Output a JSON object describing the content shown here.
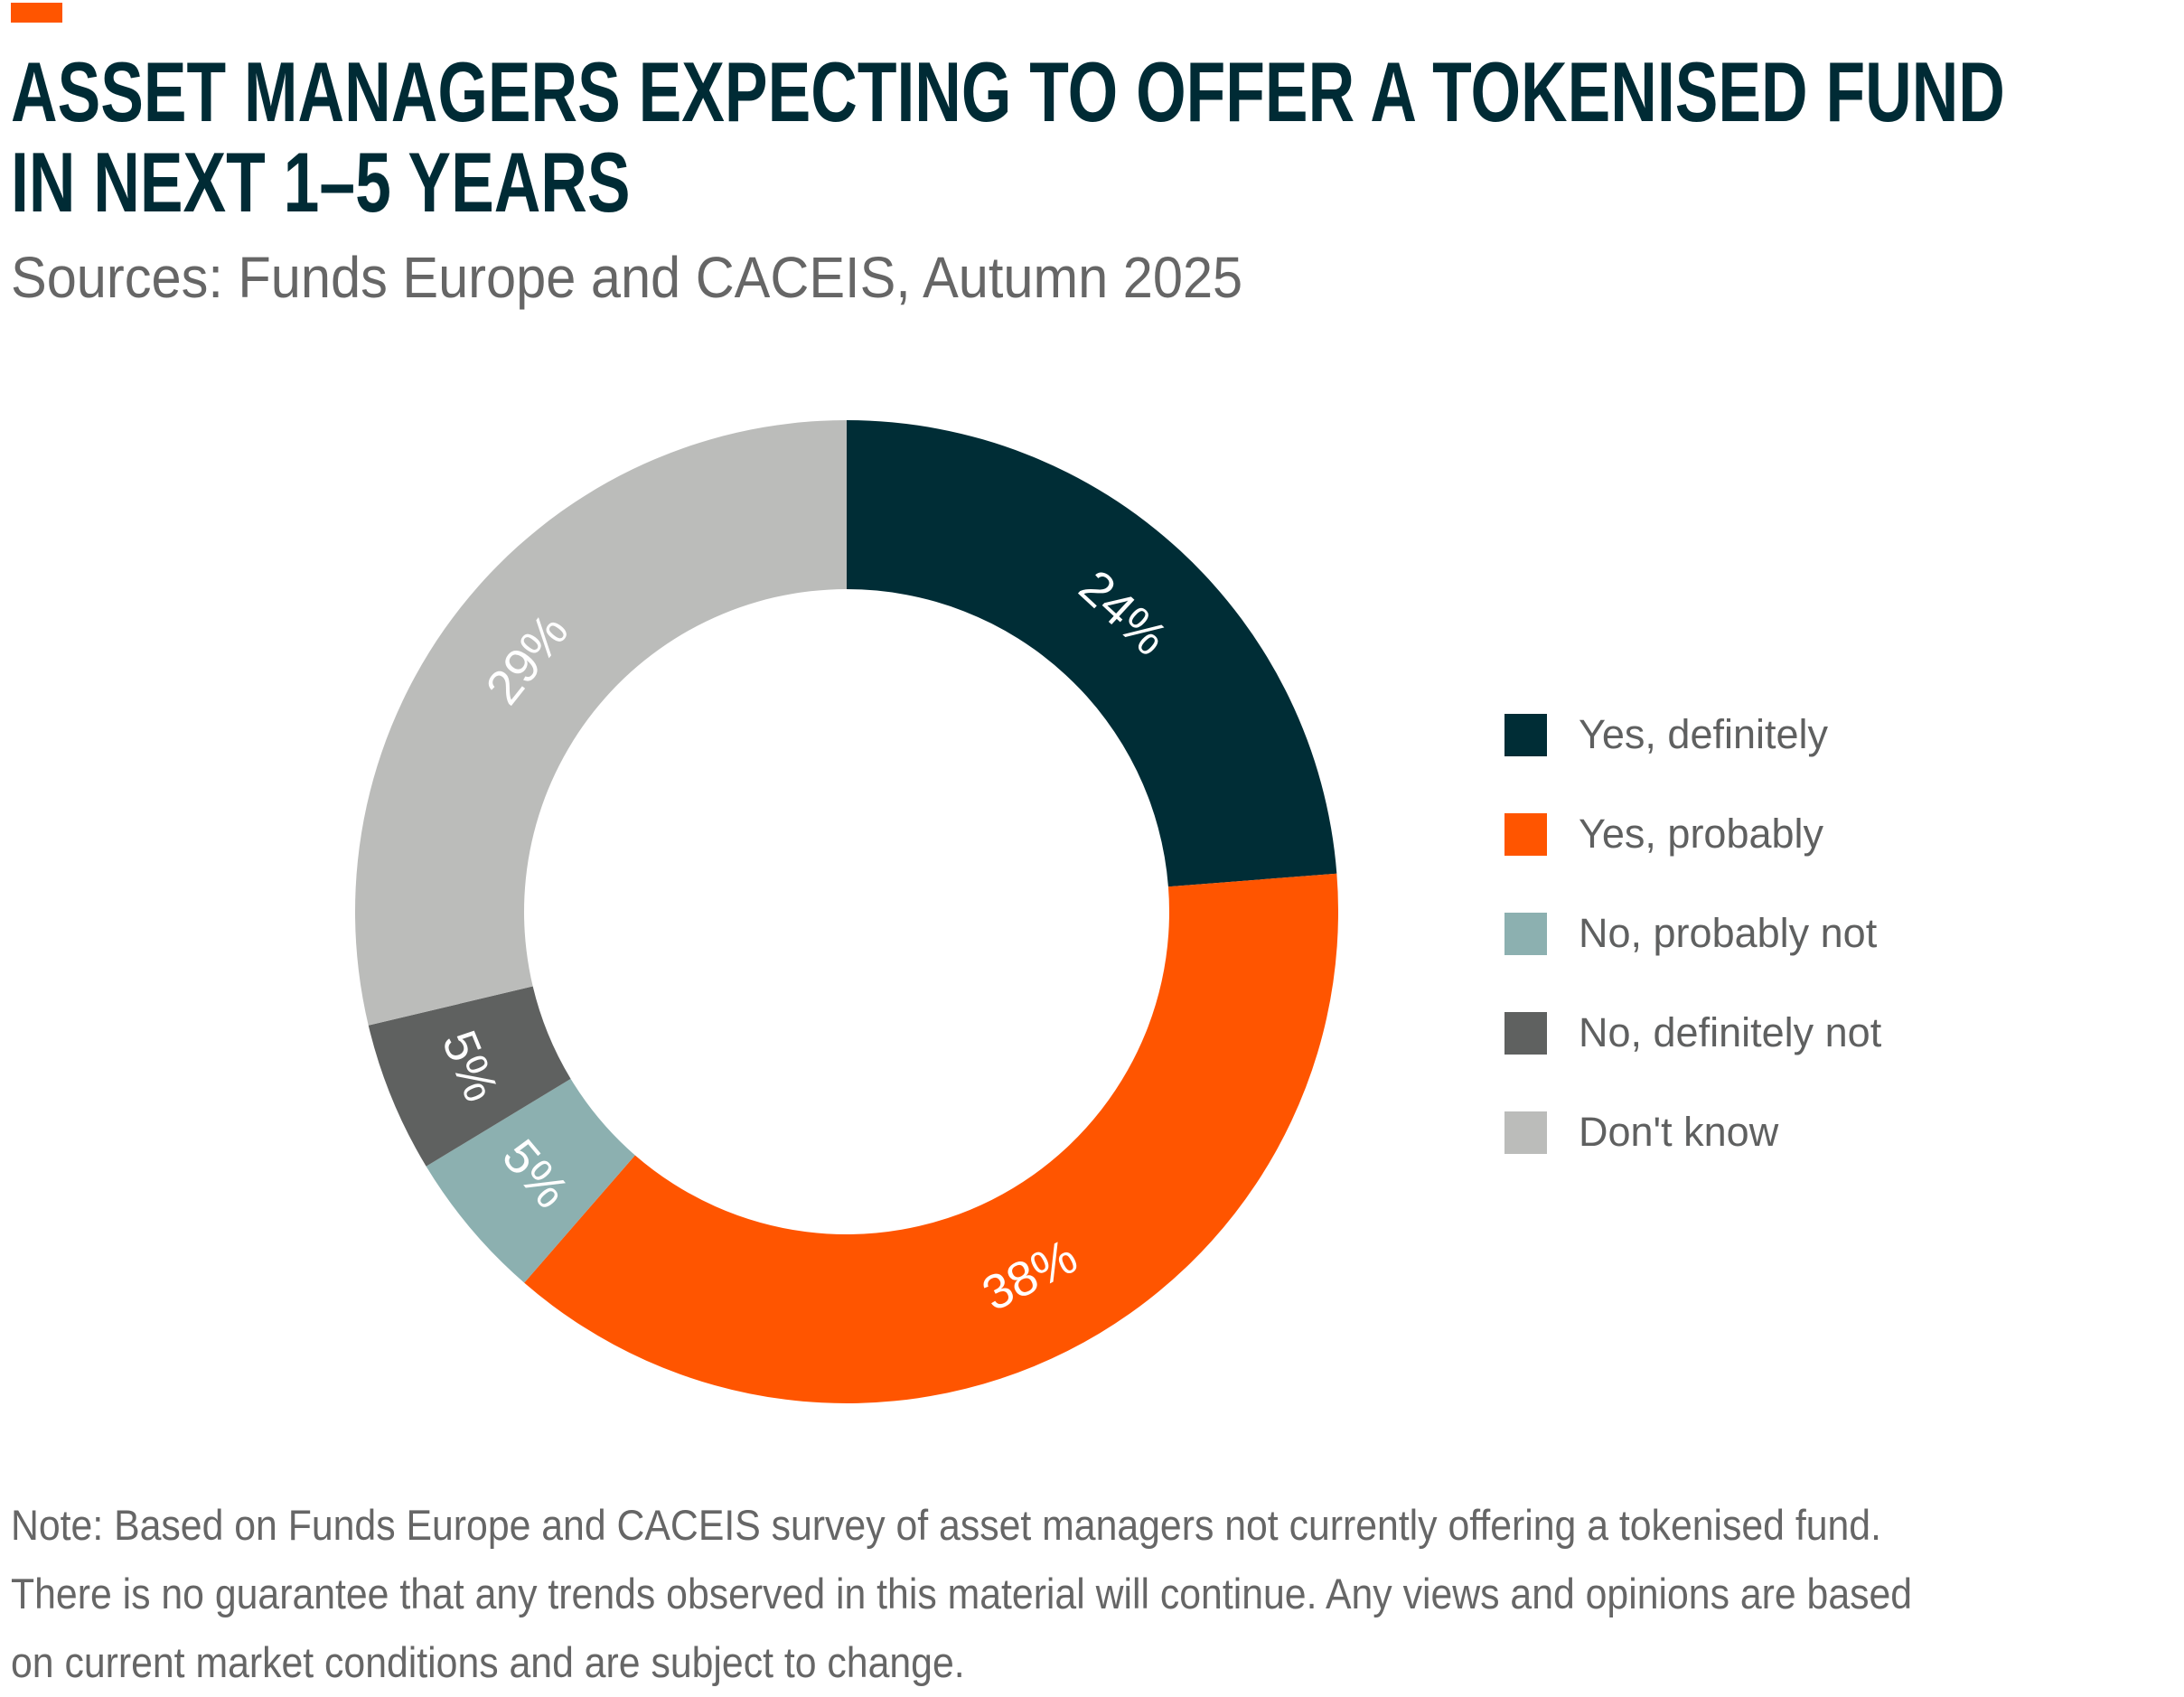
{
  "title_lines": [
    "ASSET MANAGERS EXPECTING TO OFFER A TOKENISED FUND",
    "IN NEXT 1–5 YEARS"
  ],
  "subtitle": "Sources: Funds Europe and CACEIS, Autumn 2025",
  "accent_color": "#ff5500",
  "chart_data": {
    "type": "pie",
    "donut": true,
    "start": "top, clockwise",
    "legend_position": "right",
    "categories": [
      "Yes, definitely",
      "Yes, probably",
      "No, probably not",
      "No, definitely not",
      "Don't know"
    ],
    "values": [
      24,
      38,
      5,
      5,
      29
    ],
    "labels": [
      "24%",
      "38%",
      "5%",
      "5%",
      "29%"
    ],
    "colors": [
      "#002d36",
      "#ff5500",
      "#8cb0b0",
      "#5f6160",
      "#bbbcba"
    ]
  },
  "note_lines": [
    "Note: Based on Funds Europe and CACEIS survey of asset managers not currently offering a tokenised fund.",
    "There is no guarantee that any trends observed in this material will continue. Any views and opinions are based",
    "on current market conditions and are subject to change."
  ]
}
